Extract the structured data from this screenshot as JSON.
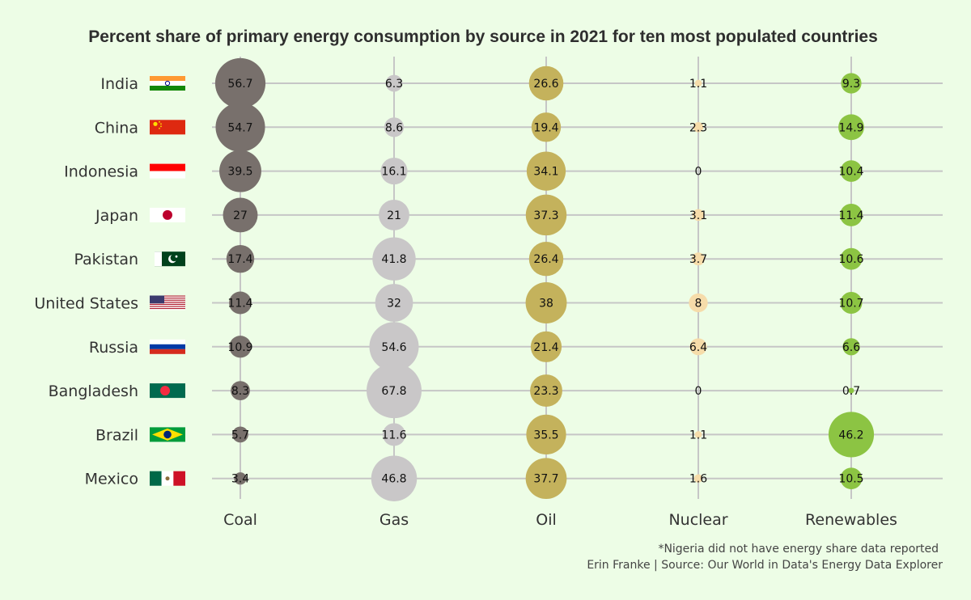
{
  "chart_data": {
    "type": "bubble-grid",
    "title": "Percent share of primary energy consumption by source in 2021 for ten most populated countries",
    "sources": [
      "Coal",
      "Gas",
      "Oil",
      "Nuclear",
      "Renewables"
    ],
    "colors": {
      "Coal": "#78706c",
      "Gas": "#c9c7c8",
      "Oil": "#c4b25c",
      "Nuclear": "#f6dcaa",
      "Renewables": "#8cc443"
    },
    "countries": [
      {
        "name": "India",
        "flag": "india-flag",
        "values": [
          56.7,
          6.3,
          26.6,
          1.1,
          9.3
        ]
      },
      {
        "name": "China",
        "flag": "china-flag",
        "values": [
          54.7,
          8.6,
          19.4,
          2.3,
          14.9
        ]
      },
      {
        "name": "Indonesia",
        "flag": "indonesia-flag",
        "values": [
          39.5,
          16.1,
          34.1,
          0,
          10.4
        ]
      },
      {
        "name": "Japan",
        "flag": "japan-flag",
        "values": [
          27,
          21,
          37.3,
          3.1,
          11.4
        ]
      },
      {
        "name": "Pakistan",
        "flag": "pakistan-flag",
        "values": [
          17.4,
          41.8,
          26.4,
          3.7,
          10.6
        ]
      },
      {
        "name": "United States",
        "flag": "usa-flag",
        "values": [
          11.4,
          32,
          38,
          8,
          10.7
        ]
      },
      {
        "name": "Russia",
        "flag": "russia-flag",
        "values": [
          10.9,
          54.6,
          21.4,
          6.4,
          6.6
        ]
      },
      {
        "name": "Bangladesh",
        "flag": "bangladesh-flag",
        "values": [
          8.3,
          67.8,
          23.3,
          0,
          0.7
        ]
      },
      {
        "name": "Brazil",
        "flag": "brazil-flag",
        "values": [
          5.7,
          11.6,
          35.5,
          1.1,
          46.2
        ]
      },
      {
        "name": "Mexico",
        "flag": "mexico-flag",
        "values": [
          3.4,
          46.8,
          37.7,
          1.6,
          10.5
        ]
      }
    ],
    "notes": [
      "*Nigeria did not have energy share data reported",
      "Erin Franke | Source: Our World in Data's Energy Data Explorer"
    ]
  }
}
